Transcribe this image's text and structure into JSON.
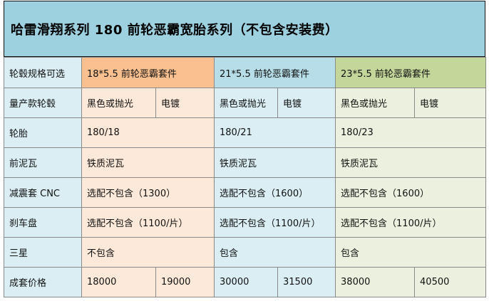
{
  "title": "哈雷滑翔系列 180 前轮恶霸宽胎系列（不包含安装费）",
  "rows": {
    "spec": {
      "label": "轮毂规格可选",
      "col1": "18*5.5 前轮恶霸套件",
      "col2": "21*5.5 前轮恶霸套件",
      "col3": "23*5.5 前轮恶霸套件"
    },
    "wheel": {
      "label": "量产款轮毂",
      "col1_a": "黑色或抛光",
      "col1_b": "电镀",
      "col2_a": "黑色或抛光",
      "col2_b": "电镀",
      "col3_a": "黑色或抛光",
      "col3_b": "电镀"
    },
    "tire": {
      "label": "轮胎",
      "col1": "180/18",
      "col2": "180/21",
      "col3": "180/23"
    },
    "fender": {
      "label": "前泥瓦",
      "col1": "铁质泥瓦",
      "col2": "铁质泥瓦",
      "col3": "铁质泥瓦"
    },
    "shock": {
      "label": "减震套 CNC",
      "col1": "选配不包含（1300）",
      "col2": "选配不包含（1600）",
      "col3": "选配不包含（1600）"
    },
    "brake": {
      "label": "刹车盘",
      "col1": "选配不包含（1100/片）",
      "col2": "选配不包含（1100/片）",
      "col3": "选配不包含（1100/片）"
    },
    "triple": {
      "label": "三星",
      "col1": "不包含",
      "col2": "包含",
      "col3": "包含"
    },
    "price": {
      "label": "成套价格",
      "col1_a": "18000",
      "col1_b": "19000",
      "col2_a": "30000",
      "col2_b": "31500",
      "col3_a": "38000",
      "col3_b": "40500"
    }
  },
  "colors": {
    "title_bg": "#9dd1e0",
    "label_bg": "#daeef3",
    "col1_header": "#fac090",
    "col1_body": "#fde9d9",
    "col2_header": "#b7dee8",
    "col2_body": "#daeef3",
    "col3_header": "#c4d79b",
    "col3_body": "#ebf1de"
  }
}
